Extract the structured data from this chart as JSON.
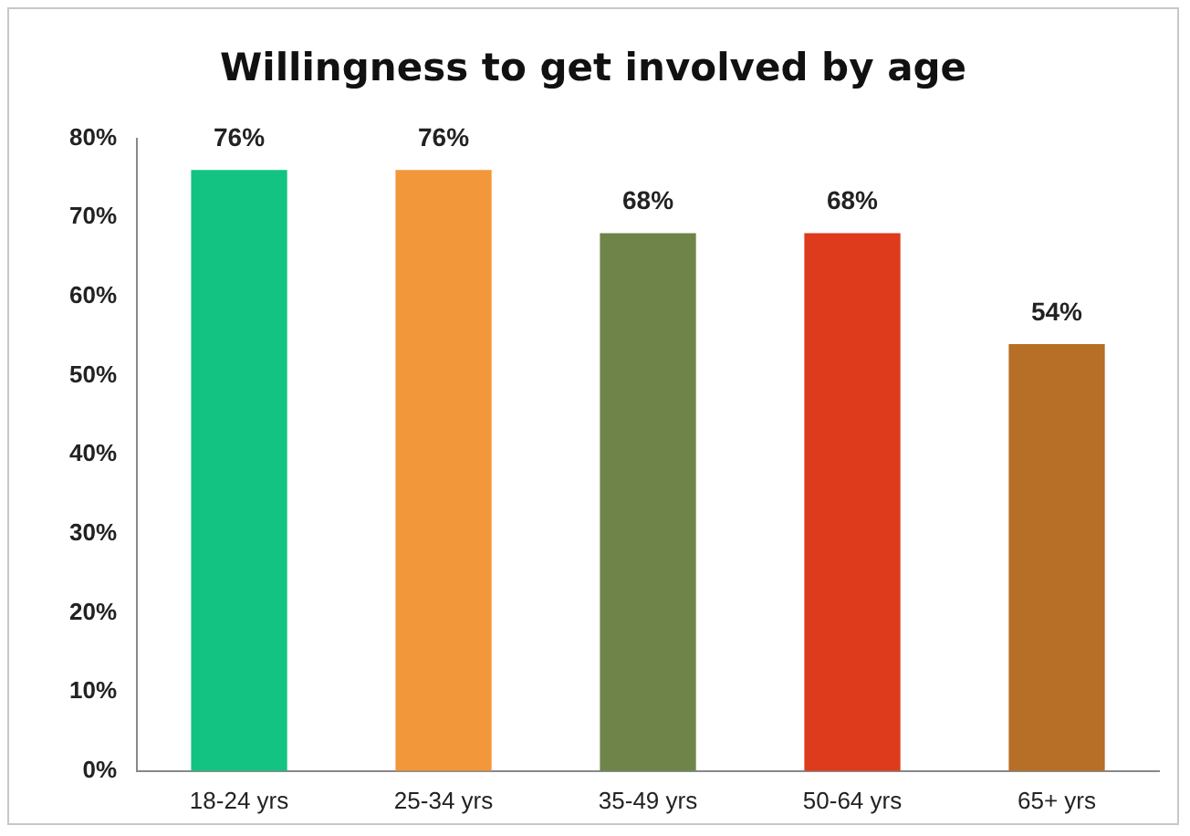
{
  "chart_data": {
    "type": "bar",
    "title": "Willingness to get involved by age",
    "categories": [
      "18-24 yrs",
      "25-34 yrs",
      "35-49 yrs",
      "50-64 yrs",
      "65+ yrs"
    ],
    "values": [
      76,
      76,
      68,
      68,
      54
    ],
    "colors": [
      "#12c381",
      "#f2973a",
      "#6e8449",
      "#de3a1c",
      "#b76e26"
    ],
    "value_labels": [
      "76%",
      "76%",
      "68%",
      "68%",
      "54%"
    ],
    "ylim": [
      0,
      80
    ],
    "yticks": [
      {
        "value": 0,
        "label": "0%"
      },
      {
        "value": 10,
        "label": "10%"
      },
      {
        "value": 20,
        "label": "20%"
      },
      {
        "value": 30,
        "label": "30%"
      },
      {
        "value": 40,
        "label": "40%"
      },
      {
        "value": 50,
        "label": "50%"
      },
      {
        "value": 60,
        "label": "60%"
      },
      {
        "value": 70,
        "label": "70%"
      },
      {
        "value": 80,
        "label": "80%"
      }
    ],
    "grid": false,
    "legend": false
  }
}
